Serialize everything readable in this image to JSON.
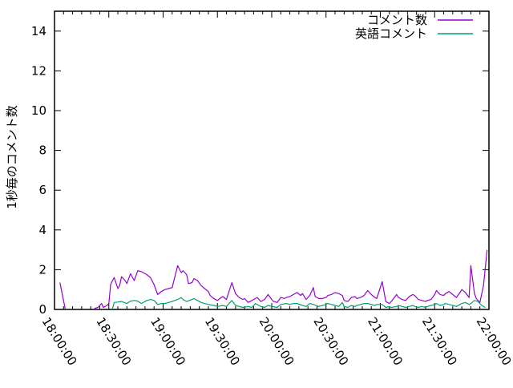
{
  "colors": {
    "background": "#ffffff",
    "axis": "#000000",
    "text": "#000000"
  },
  "chart_data": {
    "type": "line",
    "title": "",
    "xlabel": "",
    "ylabel": "1秒毎のコメント数",
    "ylim": [
      0,
      15
    ],
    "yticks": [
      0,
      2,
      4,
      6,
      8,
      10,
      12,
      14
    ],
    "xtick_labels": [
      "18:00:00",
      "18:30:00",
      "19:00:00",
      "19:30:00",
      "20:00:00",
      "20:30:00",
      "21:00:00",
      "21:30:00",
      "22:00:00"
    ],
    "x_minor_tick_minutes": 5,
    "x_major_tick_minutes": 30,
    "grid": false,
    "legend_position": "top-right-inside",
    "series": [
      {
        "name": "コメント数",
        "color": "#9400d3",
        "segments": [
          [
            [
              "18:03:00",
              1.35
            ],
            [
              "18:04:00",
              0.9
            ],
            [
              "18:06:00",
              0.0
            ]
          ],
          [
            [
              "18:22:00",
              0.05
            ],
            [
              "18:24:00",
              0.1
            ],
            [
              "18:26:00",
              0.3
            ],
            [
              "18:27:00",
              0.1
            ],
            [
              "18:29:00",
              0.2
            ],
            [
              "18:30:00",
              0.3
            ],
            [
              "18:31:00",
              1.25
            ],
            [
              "18:32:00",
              1.45
            ],
            [
              "18:33:00",
              1.6
            ],
            [
              "18:35:00",
              1.05
            ],
            [
              "18:36:00",
              1.2
            ],
            [
              "18:37:00",
              1.65
            ],
            [
              "18:39:00",
              1.45
            ],
            [
              "18:40:00",
              1.3
            ],
            [
              "18:42:00",
              1.8
            ],
            [
              "18:44:00",
              1.45
            ],
            [
              "18:46:00",
              1.95
            ],
            [
              "18:48:00",
              1.9
            ],
            [
              "18:51:00",
              1.75
            ],
            [
              "18:53:00",
              1.6
            ],
            [
              "18:55:00",
              1.25
            ],
            [
              "18:57:00",
              0.75
            ],
            [
              "18:59:00",
              0.9
            ],
            [
              "19:01:00",
              1.0
            ],
            [
              "19:03:00",
              1.05
            ],
            [
              "19:05:00",
              1.1
            ],
            [
              "19:08:00",
              2.2
            ],
            [
              "19:10:00",
              1.85
            ],
            [
              "19:11:00",
              1.95
            ],
            [
              "19:13:00",
              1.75
            ],
            [
              "19:14:00",
              1.3
            ],
            [
              "19:16:00",
              1.35
            ],
            [
              "19:17:00",
              1.55
            ],
            [
              "19:19:00",
              1.45
            ],
            [
              "19:21:00",
              1.2
            ],
            [
              "19:23:00",
              1.05
            ],
            [
              "19:25:00",
              0.9
            ],
            [
              "19:26:00",
              0.7
            ],
            [
              "19:28:00",
              0.55
            ],
            [
              "19:30:00",
              0.45
            ],
            [
              "19:32:00",
              0.6
            ],
            [
              "19:33:00",
              0.65
            ],
            [
              "19:35:00",
              0.5
            ],
            [
              "19:38:00",
              1.35
            ],
            [
              "19:40:00",
              0.8
            ],
            [
              "19:42:00",
              0.6
            ],
            [
              "19:44:00",
              0.5
            ],
            [
              "19:45:00",
              0.55
            ],
            [
              "19:47:00",
              0.35
            ],
            [
              "19:49:00",
              0.45
            ],
            [
              "19:51:00",
              0.55
            ],
            [
              "19:52:00",
              0.6
            ],
            [
              "19:54:00",
              0.4
            ],
            [
              "19:56:00",
              0.5
            ],
            [
              "19:58:00",
              0.75
            ],
            [
              "20:00:00",
              0.5
            ],
            [
              "20:01:00",
              0.4
            ],
            [
              "20:03:00",
              0.35
            ],
            [
              "20:05:00",
              0.6
            ],
            [
              "20:07:00",
              0.55
            ],
            [
              "20:08:00",
              0.6
            ],
            [
              "20:10:00",
              0.65
            ],
            [
              "20:12:00",
              0.75
            ],
            [
              "20:14:00",
              0.85
            ],
            [
              "20:16:00",
              0.7
            ],
            [
              "20:17:00",
              0.8
            ],
            [
              "20:19:00",
              0.5
            ],
            [
              "20:21:00",
              0.7
            ],
            [
              "20:23:00",
              1.1
            ],
            [
              "20:24:00",
              0.65
            ],
            [
              "20:26:00",
              0.55
            ],
            [
              "20:28:00",
              0.55
            ],
            [
              "20:30:00",
              0.6
            ],
            [
              "20:31:00",
              0.7
            ],
            [
              "20:33:00",
              0.75
            ],
            [
              "20:35:00",
              0.85
            ],
            [
              "20:37:00",
              0.8
            ],
            [
              "20:39:00",
              0.7
            ],
            [
              "20:40:00",
              0.45
            ],
            [
              "20:42:00",
              0.4
            ],
            [
              "20:44:00",
              0.6
            ],
            [
              "20:46:00",
              0.65
            ],
            [
              "20:47:00",
              0.55
            ],
            [
              "20:49:00",
              0.6
            ],
            [
              "20:51:00",
              0.7
            ],
            [
              "20:53:00",
              0.95
            ],
            [
              "20:55:00",
              0.75
            ],
            [
              "20:57:00",
              0.6
            ],
            [
              "20:58:00",
              0.55
            ],
            [
              "21:01:00",
              1.4
            ],
            [
              "21:03:00",
              0.4
            ],
            [
              "21:05:00",
              0.3
            ],
            [
              "21:06:00",
              0.4
            ],
            [
              "21:09:00",
              0.75
            ],
            [
              "21:10:00",
              0.6
            ],
            [
              "21:12:00",
              0.5
            ],
            [
              "21:14:00",
              0.45
            ],
            [
              "21:16:00",
              0.65
            ],
            [
              "21:18:00",
              0.75
            ],
            [
              "21:19:00",
              0.7
            ],
            [
              "21:21:00",
              0.5
            ],
            [
              "21:23:00",
              0.45
            ],
            [
              "21:25:00",
              0.4
            ],
            [
              "21:26:00",
              0.45
            ],
            [
              "21:28:00",
              0.5
            ],
            [
              "21:30:00",
              0.75
            ],
            [
              "21:31:00",
              0.95
            ],
            [
              "21:33:00",
              0.75
            ],
            [
              "21:35:00",
              0.7
            ],
            [
              "21:36:00",
              0.8
            ],
            [
              "21:38:00",
              0.9
            ],
            [
              "21:40:00",
              0.75
            ],
            [
              "21:42:00",
              0.6
            ],
            [
              "21:44:00",
              0.85
            ],
            [
              "21:45:00",
              1.0
            ],
            [
              "21:47:00",
              0.85
            ],
            [
              "21:49:00",
              0.6
            ],
            [
              "21:50:00",
              2.2
            ],
            [
              "21:52:00",
              0.8
            ],
            [
              "21:53:00",
              0.55
            ],
            [
              "21:55:00",
              0.35
            ],
            [
              "21:57:00",
              1.2
            ],
            [
              "21:59:00",
              3.0
            ]
          ]
        ]
      },
      {
        "name": "英語コメント",
        "color": "#009e73",
        "segments": [
          [
            [
              "18:32:00",
              0.05
            ],
            [
              "18:33:00",
              0.35
            ],
            [
              "18:35:00",
              0.37
            ],
            [
              "18:37:00",
              0.4
            ],
            [
              "18:40:00",
              0.3
            ],
            [
              "18:42:00",
              0.42
            ],
            [
              "18:44:00",
              0.45
            ],
            [
              "18:46:00",
              0.42
            ],
            [
              "18:48:00",
              0.3
            ],
            [
              "18:51:00",
              0.45
            ],
            [
              "18:53:00",
              0.5
            ],
            [
              "18:55:00",
              0.45
            ],
            [
              "18:57:00",
              0.25
            ],
            [
              "18:59:00",
              0.3
            ],
            [
              "19:01:00",
              0.3
            ],
            [
              "19:03:00",
              0.35
            ],
            [
              "19:05:00",
              0.4
            ],
            [
              "19:08:00",
              0.5
            ],
            [
              "19:10:00",
              0.6
            ],
            [
              "19:11:00",
              0.5
            ],
            [
              "19:13:00",
              0.4
            ],
            [
              "19:16:00",
              0.5
            ],
            [
              "19:17:00",
              0.55
            ],
            [
              "19:19:00",
              0.45
            ],
            [
              "19:21:00",
              0.35
            ],
            [
              "19:23:00",
              0.3
            ],
            [
              "19:25:00",
              0.25
            ],
            [
              "19:28:00",
              0.2
            ],
            [
              "19:30:00",
              0.15
            ],
            [
              "19:33:00",
              0.2
            ],
            [
              "19:35:00",
              0.15
            ],
            [
              "19:38:00",
              0.45
            ],
            [
              "19:40:00",
              0.2
            ],
            [
              "19:42:00",
              0.15
            ],
            [
              "19:44:00",
              0.1
            ],
            [
              "19:47:00",
              0.15
            ],
            [
              "19:49:00",
              0.1
            ],
            [
              "19:51:00",
              0.3
            ],
            [
              "19:54:00",
              0.15
            ],
            [
              "19:56:00",
              0.1
            ],
            [
              "19:58:00",
              0.2
            ],
            [
              "20:00:00",
              0.15
            ],
            [
              "20:03:00",
              0.1
            ],
            [
              "20:05:00",
              0.25
            ],
            [
              "20:08:00",
              0.3
            ],
            [
              "20:10:00",
              0.25
            ],
            [
              "20:12:00",
              0.3
            ],
            [
              "20:14:00",
              0.3
            ],
            [
              "20:17:00",
              0.2
            ],
            [
              "20:19:00",
              0.15
            ],
            [
              "20:21:00",
              0.3
            ],
            [
              "20:23:00",
              0.25
            ],
            [
              "20:26:00",
              0.15
            ],
            [
              "20:28:00",
              0.2
            ],
            [
              "20:30:00",
              0.25
            ],
            [
              "20:31:00",
              0.3
            ],
            [
              "20:33:00",
              0.25
            ],
            [
              "20:35:00",
              0.2
            ],
            [
              "20:37:00",
              0.15
            ],
            [
              "20:39:00",
              0.35
            ],
            [
              "20:40:00",
              0.15
            ],
            [
              "20:42:00",
              0.1
            ],
            [
              "20:44:00",
              0.2
            ],
            [
              "20:46:00",
              0.15
            ],
            [
              "20:47:00",
              0.2
            ],
            [
              "20:49:00",
              0.25
            ],
            [
              "20:51:00",
              0.3
            ],
            [
              "20:53:00",
              0.3
            ],
            [
              "20:55:00",
              0.25
            ],
            [
              "20:57:00",
              0.2
            ],
            [
              "20:58:00",
              0.25
            ],
            [
              "21:01:00",
              0.25
            ],
            [
              "21:03:00",
              0.1
            ],
            [
              "21:05:00",
              0.15
            ],
            [
              "21:06:00",
              0.1
            ],
            [
              "21:09:00",
              0.15
            ],
            [
              "21:10:00",
              0.2
            ],
            [
              "21:12:00",
              0.15
            ],
            [
              "21:14:00",
              0.1
            ],
            [
              "21:16:00",
              0.15
            ],
            [
              "21:18:00",
              0.2
            ],
            [
              "21:19:00",
              0.15
            ],
            [
              "21:21:00",
              0.1
            ],
            [
              "21:23:00",
              0.15
            ],
            [
              "21:25:00",
              0.1
            ],
            [
              "21:26:00",
              0.15
            ],
            [
              "21:28:00",
              0.2
            ],
            [
              "21:30:00",
              0.25
            ],
            [
              "21:31:00",
              0.3
            ],
            [
              "21:33:00",
              0.2
            ],
            [
              "21:35:00",
              0.25
            ],
            [
              "21:36:00",
              0.3
            ],
            [
              "21:38:00",
              0.25
            ],
            [
              "21:40:00",
              0.2
            ],
            [
              "21:42:00",
              0.15
            ],
            [
              "21:44:00",
              0.25
            ],
            [
              "21:45:00",
              0.3
            ],
            [
              "21:47:00",
              0.35
            ],
            [
              "21:49:00",
              0.25
            ],
            [
              "21:50:00",
              0.3
            ],
            [
              "21:52:00",
              0.45
            ],
            [
              "21:54:00",
              0.4
            ],
            [
              "21:56:00",
              0.2
            ],
            [
              "21:58:00",
              0.1
            ]
          ]
        ]
      }
    ]
  }
}
